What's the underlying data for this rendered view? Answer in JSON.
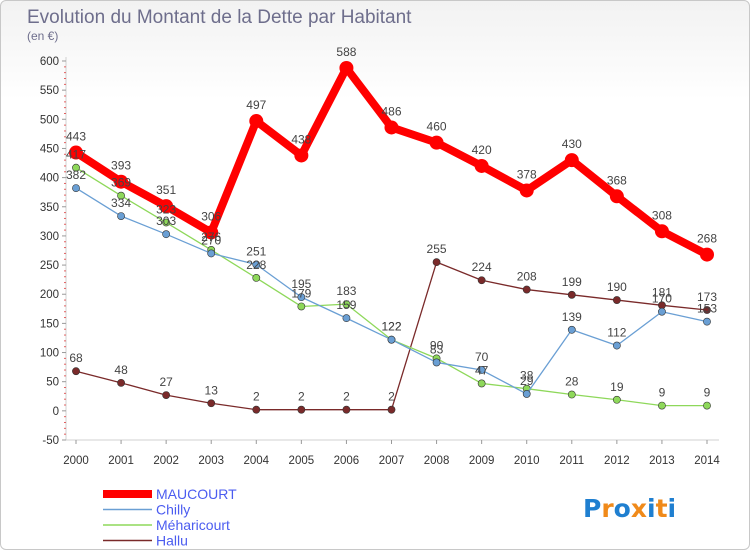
{
  "chart_data": {
    "type": "line",
    "title": "Evolution du Montant de la Dette par Habitant",
    "subtitle": "(en €)",
    "xlabel": "",
    "ylabel": "",
    "categories": [
      "2000",
      "2001",
      "2002",
      "2003",
      "2004",
      "2005",
      "2006",
      "2007",
      "2008",
      "2009",
      "2010",
      "2011",
      "2012",
      "2013",
      "2014"
    ],
    "ylim": [
      -50,
      600
    ],
    "yticks": [
      -50,
      0,
      50,
      100,
      150,
      200,
      250,
      300,
      350,
      400,
      450,
      500,
      550,
      600
    ],
    "grid": false,
    "legend_position": "bottom-left",
    "series": [
      {
        "name": "MAUCOURT",
        "color": "#ff0000",
        "values": [
          443,
          393,
          351,
          306,
          497,
          438,
          588,
          486,
          460,
          420,
          378,
          430,
          368,
          308,
          268
        ],
        "labels": [
          "443",
          "393",
          "351",
          "306",
          "497",
          "438",
          "588",
          "486",
          "460",
          "420",
          "378",
          "430",
          "368",
          "308",
          "268"
        ]
      },
      {
        "name": "Chilly",
        "color": "#6a9fd4",
        "values": [
          382,
          334,
          303,
          270,
          251,
          195,
          159,
          122,
          83,
          70,
          29,
          139,
          112,
          170,
          153
        ],
        "labels": [
          "382",
          "334",
          "303",
          "270",
          "251",
          "195",
          "159",
          "122",
          "83",
          "70",
          "29",
          "139",
          "112",
          "170",
          "153"
        ]
      },
      {
        "name": "Méharicourt",
        "color": "#8ed85a",
        "values": [
          417,
          369,
          323,
          276,
          228,
          179,
          183,
          122,
          90,
          47,
          38,
          28,
          19,
          9,
          9
        ],
        "labels": [
          "417",
          "369",
          "323",
          "276",
          "228",
          "179",
          "183",
          "122",
          "90",
          "47",
          "38",
          "28",
          "19",
          "9",
          "9"
        ]
      },
      {
        "name": "Hallu",
        "color": "#7a2a2a",
        "values": [
          68,
          48,
          27,
          13,
          2,
          2,
          2,
          2,
          255,
          224,
          208,
          199,
          190,
          181,
          173
        ],
        "labels": [
          "68",
          "48",
          "27",
          "13",
          "2",
          "2",
          "2",
          "2",
          "255",
          "224",
          "208",
          "199",
          "190",
          "181",
          "173"
        ]
      }
    ]
  },
  "logo": {
    "text": "Proxiti",
    "letters": [
      "P",
      "r",
      "o",
      "x",
      "i",
      "t",
      "i"
    ],
    "colors": [
      "#1f7fd0",
      "#f08a1a",
      "#1f7fd0",
      "#f08a1a",
      "#1f7fd0",
      "#f08a1a",
      "#1f7fd0"
    ]
  }
}
